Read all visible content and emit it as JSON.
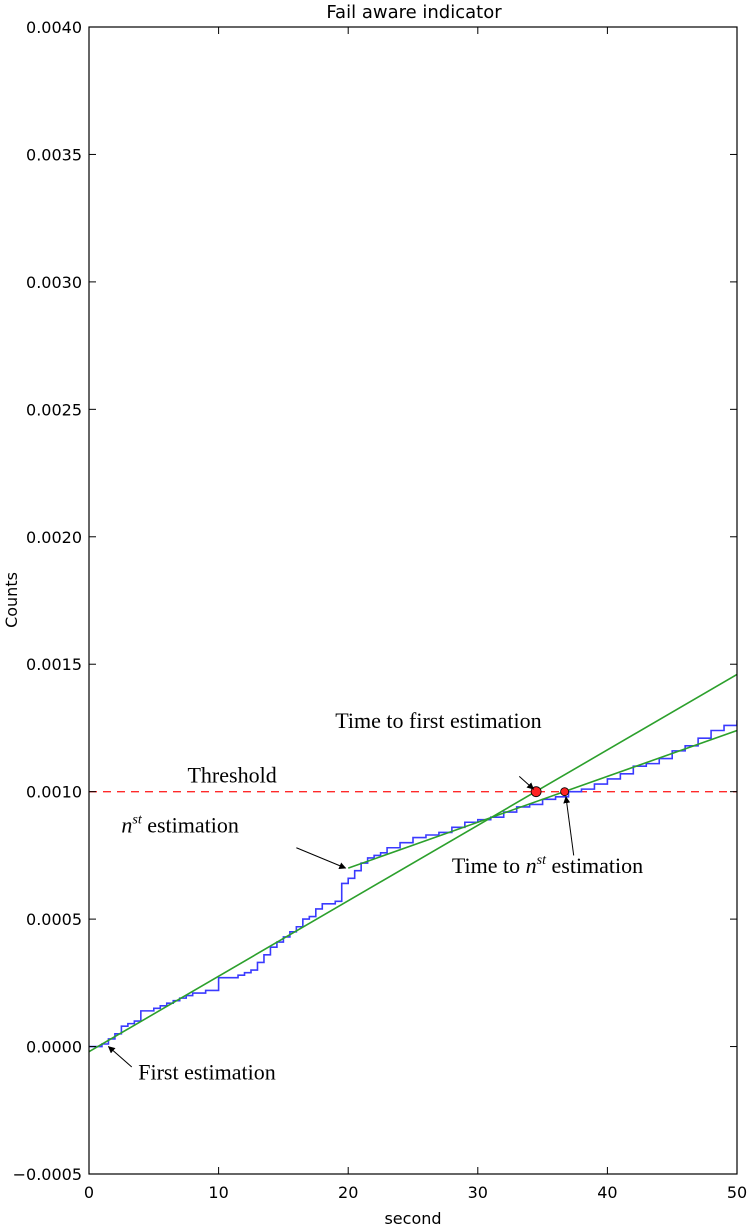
{
  "chart_data": {
    "type": "line",
    "title": "Fail aware indicator",
    "xlabel": "second",
    "ylabel": "Counts",
    "xlim": [
      0,
      50
    ],
    "ylim": [
      -0.0005,
      0.004
    ],
    "x_ticks": [
      0,
      10,
      20,
      30,
      40,
      50
    ],
    "x_tick_labels": [
      "0",
      "10",
      "20",
      "30",
      "40",
      "50"
    ],
    "y_ticks": [
      -0.0005,
      0.0,
      0.0005,
      0.001,
      0.0015,
      0.002,
      0.0025,
      0.003,
      0.0035,
      0.004
    ],
    "y_tick_labels": [
      "−0.0005",
      "0.0000",
      "0.0005",
      "0.0010",
      "0.0015",
      "0.0020",
      "0.0025",
      "0.0030",
      "0.0035",
      "0.0040"
    ],
    "grid": false,
    "series": [
      {
        "color": "#3a3aff",
        "style": "step",
        "x": [
          0,
          1,
          1.5,
          2,
          2.5,
          3,
          3.5,
          4,
          4.5,
          5,
          5.5,
          6,
          6.5,
          7,
          7.5,
          8,
          8.5,
          9,
          9.5,
          10,
          10.5,
          11,
          11.5,
          12,
          12.5,
          13,
          13.5,
          14,
          14.5,
          15,
          15.5,
          16,
          16.5,
          17,
          17.5,
          18,
          18.5,
          19,
          19.5,
          20,
          20.5,
          21,
          21.5,
          22,
          22.5,
          23,
          24,
          25,
          26,
          27,
          28,
          29,
          30,
          31,
          32,
          33,
          34,
          35,
          36,
          37,
          38,
          39,
          40,
          41,
          42,
          43,
          44,
          45,
          46,
          47,
          48,
          49,
          50
        ],
        "y": [
          0.0,
          1e-05,
          3e-05,
          5e-05,
          8e-05,
          9e-05,
          0.0001,
          0.00014,
          0.00014,
          0.00015,
          0.00016,
          0.00017,
          0.00018,
          0.00019,
          0.0002,
          0.00021,
          0.00021,
          0.00022,
          0.00022,
          0.00027,
          0.00027,
          0.00027,
          0.00028,
          0.00029,
          0.0003,
          0.00033,
          0.00036,
          0.00039,
          0.00041,
          0.00043,
          0.00045,
          0.00047,
          0.0005,
          0.00051,
          0.00054,
          0.00056,
          0.00056,
          0.00057,
          0.00064,
          0.00066,
          0.00069,
          0.00072,
          0.00074,
          0.00075,
          0.00076,
          0.00078,
          0.0008,
          0.00082,
          0.00083,
          0.00084,
          0.00086,
          0.00088,
          0.00089,
          0.0009,
          0.00092,
          0.00094,
          0.00095,
          0.00097,
          0.00098,
          0.001,
          0.00101,
          0.00103,
          0.00105,
          0.00107,
          0.0011,
          0.00111,
          0.00113,
          0.00116,
          0.00118,
          0.00121,
          0.00124,
          0.00126,
          0.00128
        ]
      },
      {
        "color": "#2ca02c",
        "style": "line",
        "x": [
          0,
          50
        ],
        "y": [
          -2e-05,
          0.00146
        ]
      },
      {
        "color": "#2ca02c",
        "style": "line",
        "x": [
          20,
          50
        ],
        "y": [
          0.0007,
          0.00124
        ]
      }
    ],
    "threshold": {
      "y": 0.001,
      "label": "Threshold",
      "color": "#ff2a2a"
    },
    "markers": [
      {
        "x": 34.5,
        "y": 0.001,
        "color": "#ff2222",
        "r": 5
      },
      {
        "x": 36.7,
        "y": 0.001,
        "color": "#ff2222",
        "r": 4
      }
    ],
    "annotations": [
      {
        "text": "First estimation",
        "italic_prefix": "",
        "superscript": "",
        "text_x": 3.8,
        "text_y": -0.00013,
        "arrow_from": [
          3.3,
          -8e-05
        ],
        "arrow_to": [
          1.5,
          0.0
        ]
      },
      {
        "text": " estimation",
        "italic_prefix": "n",
        "superscript": "st",
        "text_x": 2.5,
        "text_y": 0.00084,
        "arrow_from": [
          16,
          0.00078
        ],
        "arrow_to": [
          19.8,
          0.0007
        ]
      },
      {
        "text": "Time to first estimation",
        "italic_prefix": "",
        "superscript": "",
        "text_x": 19.0,
        "text_y": 0.00125,
        "arrow_from": [
          33.2,
          0.00106
        ],
        "arrow_to": [
          34.3,
          0.00101
        ]
      },
      {
        "text": " estimation",
        "italic_prefix": "Time to n",
        "superscript": "st",
        "text_x": 28.0,
        "text_y": 0.00068,
        "arrow_from": [
          37.4,
          0.00075
        ],
        "arrow_to": [
          36.8,
          0.00098
        ]
      }
    ]
  }
}
